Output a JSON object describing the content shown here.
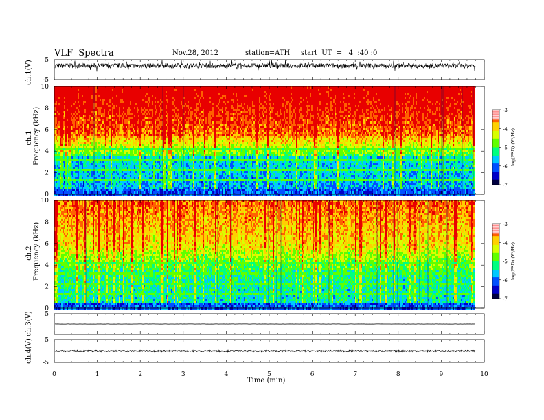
{
  "header": {
    "title": "VLF  Spectra",
    "date": "Nov.28, 2012",
    "station": "station=ATH",
    "start": "start  UT  =   4  :40 :0"
  },
  "chart_data": [
    {
      "type": "line",
      "panel": "ch1-waveform",
      "ylabel": "ch.1(V)",
      "ylim": [
        -5,
        5
      ],
      "yticks": [
        "5",
        "-5"
      ],
      "description_series": "noisy waveform centered near 2 V, amplitude about ±1.5 V with spikes",
      "baseline": 2
    },
    {
      "type": "heatmap",
      "panel": "ch1-spectrogram",
      "ylabel": [
        "ch.1",
        "Frequency  (kHz)"
      ],
      "ylim": [
        0,
        10
      ],
      "yticks": [
        "0",
        "2",
        "4",
        "6",
        "8",
        "10"
      ],
      "colorbar": {
        "label": "log(PSD) (V²/Hz)",
        "range": [
          -7,
          -3
        ],
        "ticks": [
          "-3",
          "-4",
          "-5",
          "-6",
          "-7"
        ]
      },
      "xlim": [
        0,
        9.8
      ]
    },
    {
      "type": "heatmap",
      "panel": "ch2-spectrogram",
      "ylabel": [
        "ch.2",
        "Frequency  (kHz)"
      ],
      "ylim": [
        0,
        10
      ],
      "yticks": [
        "0",
        "2",
        "4",
        "6",
        "8",
        "10"
      ],
      "colorbar": {
        "label": "log(PSD) (V²/Hz)",
        "range": [
          -7,
          -3
        ],
        "ticks": [
          "-3",
          "-4",
          "-5",
          "-6",
          "-7"
        ]
      },
      "xlim": [
        0,
        9.8
      ]
    },
    {
      "type": "line",
      "panel": "ch3-waveform",
      "ylabel": "ch.3(V)",
      "ylim": [
        -5,
        5
      ],
      "yticks": [
        "5"
      ],
      "baseline": 0
    },
    {
      "type": "line",
      "panel": "ch4-waveform",
      "ylabel": "ch.4(V)",
      "ylim": [
        -5,
        5
      ],
      "yticks": [
        "5",
        "-5"
      ],
      "baseline": 0
    }
  ],
  "xaxis": {
    "label": "Time  (min)",
    "ticks": [
      "0",
      "1",
      "2",
      "3",
      "4",
      "5",
      "6",
      "7",
      "8",
      "9",
      "10"
    ],
    "xlim": [
      0,
      10
    ]
  },
  "colors": {
    "cmap": [
      "#000040",
      "#0000c8",
      "#0050ff",
      "#00c8ff",
      "#00ff80",
      "#60ff00",
      "#d8ff00",
      "#ffd000",
      "#ff6000",
      "#e80000",
      "#ffffff"
    ]
  }
}
